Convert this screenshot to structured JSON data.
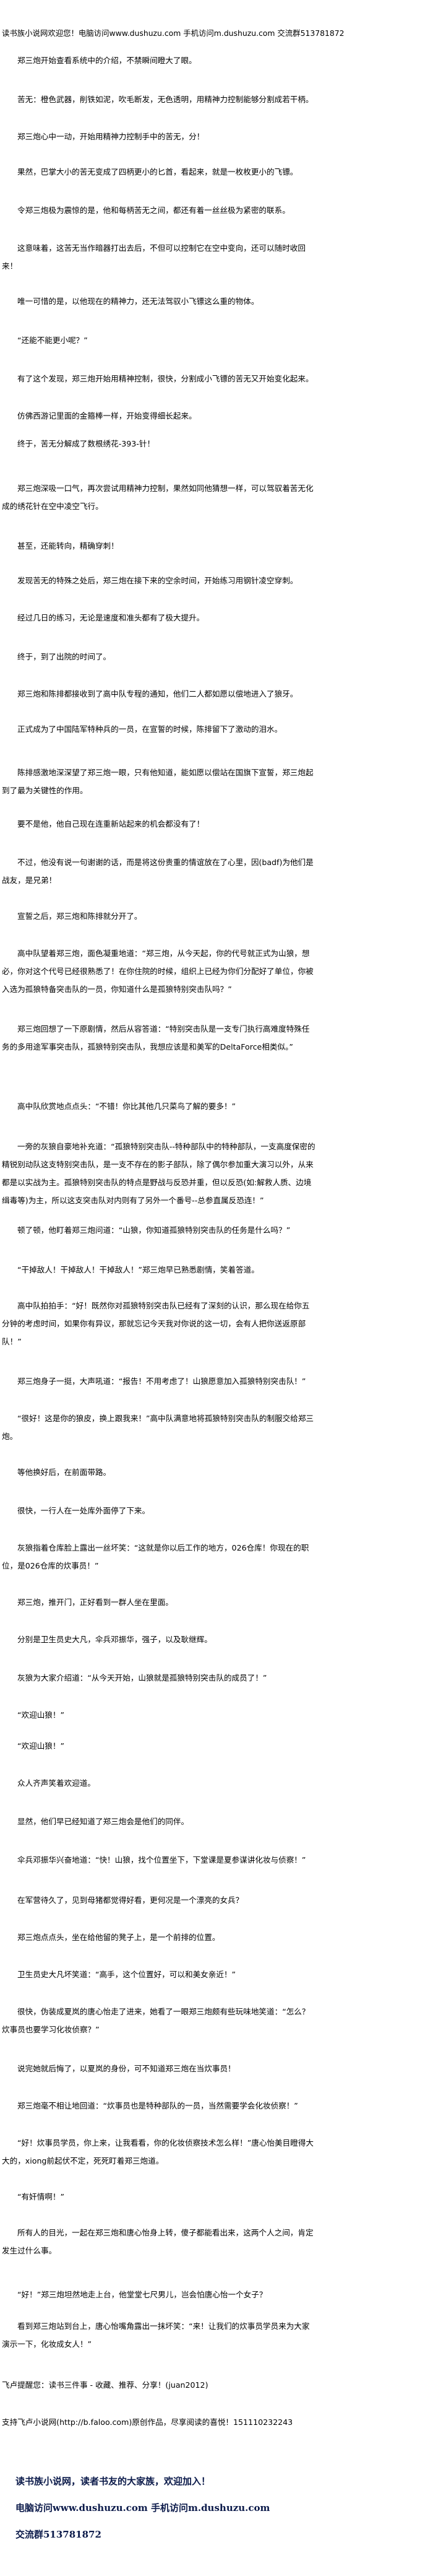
{
  "header": {
    "banner": "读书族小说网欢迎您！电脑访问www.dushuzu.com 手机访问m.dushuzu.com 交流群513781872"
  },
  "paragraphs": [
    "郑三炮开始查看系统中的介绍，不禁瞬间瞪大了眼。",
    "苦无：橙色武器，削铁如泥，吹毛断发，无色透明，用精神力控制能够分割成若干柄。",
    "郑三炮心中一动，开始用精神力控制手中的苦无，分！",
    "果然，巴掌大小的苦无变成了四柄更小的匕首，看起来，就是一枚枚更小的飞镖。",
    "令郑三炮极为震惊的是，他和每柄苦无之间，都还有着一丝丝极为紧密的联系。",
    "这意味着，这苦无当作暗器打出去后，不但可以控制它在空中变向，还可以随时收回来！",
    "唯一可惜的是，以他现在的精神力，还无法驾驭小飞镖这么重的物体。",
    "“还能不能更小呢？”",
    "有了这个发现，郑三炮开始用精神控制，很快，分割成小飞镖的苦无又开始变化起来。",
    "仿佛西游记里面的金箍棒一样，开始变得细长起来。",
    "终于，苦无分解成了数根绣花-393-针！",
    "郑三炮深吸一口气，再次尝试用精神力控制，果然如同他猜想一样，可以驾驭着苦无化成的绣花针在空中凌空飞行。",
    "甚至，还能转向，精确穿刺！",
    "发现苦无的特殊之处后，郑三炮在接下来的空余时间，开始练习用钢针凌空穿刺。",
    "经过几日的练习，无论是速度和准头都有了极大提升。",
    "终于，到了出院的时间了。",
    "郑三炮和陈排都接收到了高中队专程的通知，他们二人都如愿以偿地进入了狼牙。",
    "正式成为了中国陆军特种兵的一员，在宣誓的时候，陈排留下了激动的泪水。",
    "陈排感激地深深望了郑三炮一眼，只有他知道，能如愿以偿站在国旗下宣誓，郑三炮起到了最为关键性的作用。",
    "要不是他，他自己现在连重新站起来的机会都没有了！",
    "不过，他没有说一句谢谢的话，而是将这份贵重的情谊放在了心里，因(badf)为他们是战友，是兄弟！",
    "宣誓之后，郑三炮和陈排就分开了。",
    "高中队望着郑三炮，面色凝重地道：“郑三炮，从今天起，你的代号就正式为山狼，想必，你对这个代号已经很熟悉了！在你住院的时候，组织上已经为你们分配好了单位，你被入选为孤狼特备突击队的一员，你知道什么是孤狼特别突击队吗？”",
    "郑三炮回想了一下原剧情，然后从容答道：“特别突击队是一支专门执行高难度特殊任务的多用途军事突击队，孤狼特别突击队，我想应该是和美军的DeltaForce相类似。”",
    "高中队欣赏地点点头：“不错！你比其他几只菜鸟了解的要多！”",
    "一旁的灰狼自豪地补充道：“孤狼特别突击队--特种部队中的特种部队，一支高度保密的精锐别动队这支特别突击队，是一支不存在的影子部队，除了偶尔参加重大演习以外，从来都是以实战为主。孤狼特别突击队的特点是野战与反恐并重，但以反恐(如:解救人质、边境缉毒等)为主，所以这支突击队对内则有了另外一个番号--总参直属反恐连！”",
    "顿了顿，他盯着郑三炮问道：“山狼，你知道孤狼特别突击队的任务是什么吗？”",
    "“干掉敌人！干掉敌人！干掉敌人！”郑三炮早已熟悉剧情，笑着答道。",
    "高中队拍拍手：“好！既然你对孤狼特别突击队已经有了深刻的认识，那么现在给你五分钟的考虑时间，如果你有异议，那就忘记今天我对你说的这一切，会有人把你送返原部队！”",
    "郑三炮身子一挺，大声吼道：“报告！不用考虑了！山狼愿意加入孤狼特别突击队！”",
    "“很好！这是你的狼皮，换上跟我来！”高中队满意地将孤狼特别突击队的制服交给郑三炮。",
    "等他换好后，在前面带路。",
    "很快，一行人在一处库外面停了下来。",
    "灰狼指着仓库脸上露出一丝坏笑：“这就是你以后工作的地方，026仓库！你现在的职位，是026仓库的炊事员！”",
    "郑三炮，推开门，正好看到一群人坐在里面。",
    "分别是卫生员史大凡，伞兵邓振华，强子，以及耿继辉。",
    "灰狼为大家介绍道：“从今天开始，山狼就是孤狼特别突击队的成员了！”",
    "“欢迎山狼！”",
    "“欢迎山狼！”",
    "众人齐声笑着欢迎道。",
    "显然，他们早已经知道了郑三炮会是他们的同伴。",
    "伞兵邓振华兴奋地道：“快！山狼，找个位置坐下，下堂课是夏参谋讲化妆与侦察！”",
    "在军营待久了，见到母猪都觉得好看，更何况是一个漂亮的女兵？",
    "郑三炮点点头，坐在给他留的凳子上，是一个前排的位置。",
    "卫生员史大凡坏笑道：“高手，这个位置好，可以和美女亲近！”",
    "很快，伪装成夏岚的唐心怡走了进来，她看了一眼郑三炮颇有些玩味地笑道：“怎么？炊事员也要学习化妆侦察？”",
    "说完她就后悔了，以夏岚的身份，可不知道郑三炮在当炊事员！",
    "郑三炮毫不相让地回道：“炊事员也是特种部队的一员，当然需要学会化妆侦察！”",
    "“好！炊事员学员，你上来，让我看看，你的化妆侦察技术怎么样！”唐心怡美目瞪得大大的，xiong前起伏不定，死死盯着郑三炮道。",
    "“有奸情啊！”",
    "所有人的目光，一起在郑三炮和唐心怡身上转，傻子都能看出来，这两个人之间，肯定发生过什么事。",
    "“好！”郑三炮坦然地走上台，他堂堂七尺男儿，岂会怕唐心怡一个女子？",
    "看到郑三炮站到台上，唐心怡嘴角露出一抹坏笑：“来！让我们的炊事员学员来为大家演示一下，化妆成女人！”",
    "飞卢提醒您：读书三件事 - 收藏、推荐、分享！(juan2012)",
    "支持飞卢小说网(http://b.faloo.com)原创作品，尽享阅读的喜悦！151110232243"
  ],
  "footer": {
    "slogan": "读书族小说网，读者书友的大家族，欢迎加入！",
    "access": "电脑访问www.dushuzu.com 手机访问m.dushuzu.com",
    "group": "交流群513781872",
    "color": "#0b1a4a"
  }
}
